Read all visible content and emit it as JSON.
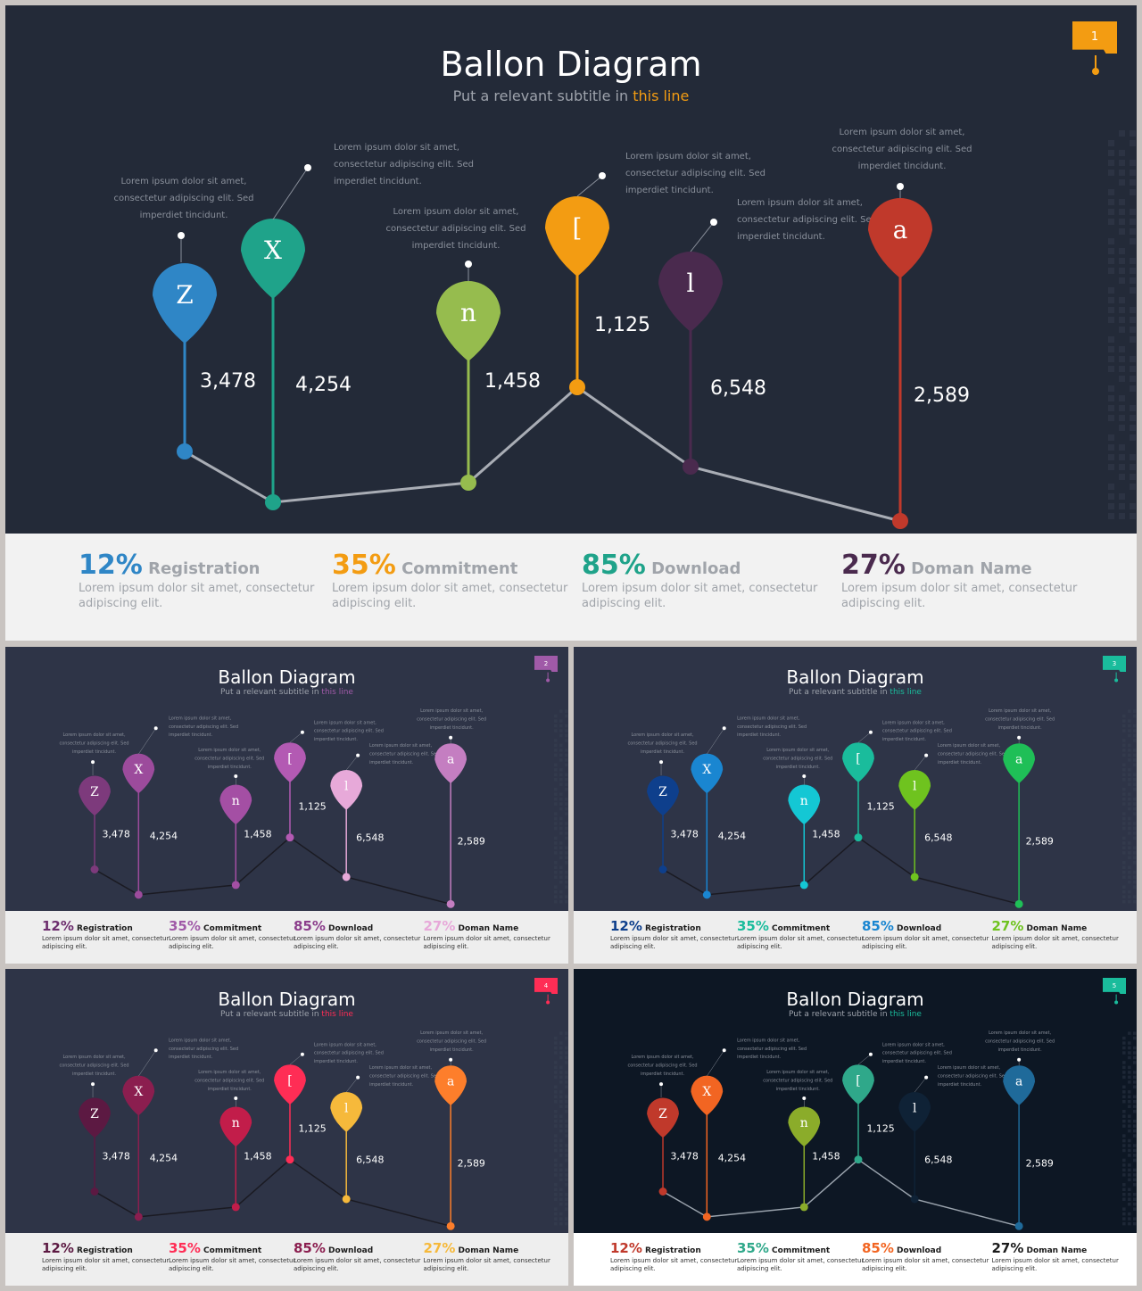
{
  "title": "Ballon Diagram",
  "subtitle_pre": "Put a relevant subtitle in ",
  "subtitle_hl": "this line",
  "lorem_short": [
    "Lorem ipsum dolor sit amet,",
    "consectetur adipiscing elit. Sed",
    "imperdiet tincidunt."
  ],
  "stat_desc": [
    "Lorem ipsum dolor sit amet, consectetur",
    "adipiscing elit."
  ],
  "balloons": [
    {
      "letter": "Z",
      "value": "3,478",
      "y": 3478
    },
    {
      "letter": "X",
      "value": "4,254",
      "y": 4254
    },
    {
      "letter": "n",
      "value": "1,458",
      "y": 1458
    },
    {
      "letter": "[",
      "value": "1,125",
      "y": 1125
    },
    {
      "letter": "l",
      "value": "6,548",
      "y": 6548
    },
    {
      "letter": "a",
      "value": "2,589",
      "y": 2589
    }
  ],
  "stats": [
    {
      "pct": "12%",
      "label": "Registration"
    },
    {
      "pct": "35%",
      "label": "Commitment"
    },
    {
      "pct": "85%",
      "label": "Download"
    },
    {
      "pct": "27%",
      "label": "Doman Name"
    }
  ],
  "slides": [
    {
      "num": "1",
      "bg": "#232a38",
      "bottom_bg": "#f2f2f2",
      "badge": "#f39c12",
      "accent": "#f39c12",
      "line": "#a9adb5",
      "colors": [
        "#2f86c6",
        "#1fa38a",
        "#96bc4e",
        "#f39c12",
        "#4a2a4e",
        "#c0392b"
      ],
      "stat_colors": [
        "#2f86c6",
        "#f39c12",
        "#1fa38a",
        "#4a2a4e"
      ]
    },
    {
      "num": "2",
      "bg": "#2e3447",
      "bottom_bg": "#eeeeee",
      "badge": "#a05aa8",
      "accent": "#a05aa8",
      "line": "#1a1a22",
      "colors": [
        "#7d3a7c",
        "#9c4b9c",
        "#a44fa4",
        "#b35ab3",
        "#e7a9d9",
        "#c47ec1"
      ],
      "stat_colors": [
        "#6d2e6e",
        "#a05aa8",
        "#8b3d8b",
        "#e7a9d9"
      ]
    },
    {
      "num": "3",
      "bg": "#2e3447",
      "bottom_bg": "#eeeeee",
      "badge": "#1abc9c",
      "accent": "#1abc9c",
      "line": "#1a1a22",
      "colors": [
        "#0e3f8c",
        "#1a86d1",
        "#14c7d4",
        "#1abc9c",
        "#6fc31f",
        "#1fbf57"
      ],
      "stat_colors": [
        "#0e3f8c",
        "#1abc9c",
        "#1a86d1",
        "#6fc31f"
      ]
    },
    {
      "num": "4",
      "bg": "#2e3447",
      "bottom_bg": "#eeeeee",
      "badge": "#ff2d55",
      "accent": "#ff2d55",
      "line": "#1a1a22",
      "colors": [
        "#5c1942",
        "#8b1e4f",
        "#c21d4a",
        "#ff2d55",
        "#f6b93b",
        "#fd7e2b"
      ],
      "stat_colors": [
        "#5c1942",
        "#ff2d55",
        "#8b1e4f",
        "#f6b93b"
      ]
    },
    {
      "num": "5",
      "bg": "#0d1724",
      "bottom_bg": "#ffffff",
      "badge": "#1abc9c",
      "accent": "#1abc9c",
      "line": "#9aa3ad",
      "colors": [
        "#c0392b",
        "#f26522",
        "#8bac2a",
        "#2fa88a",
        "#0f2236",
        "#1f6a9a"
      ],
      "stat_colors": [
        "#c0392b",
        "#2fa88a",
        "#f26522",
        "#1a1a1a"
      ]
    }
  ]
}
